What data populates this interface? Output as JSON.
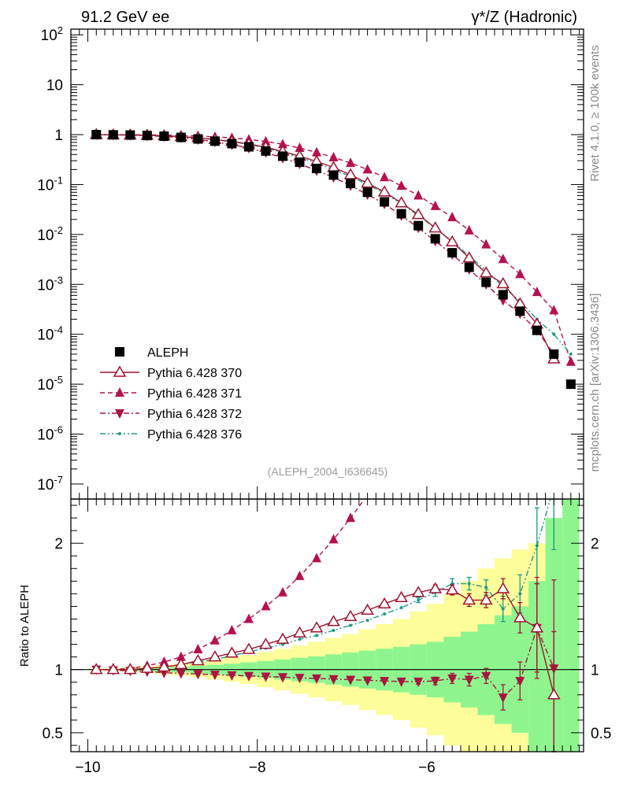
{
  "header": {
    "energy_label": "91.2 GeV ee",
    "process_label": "γ*/Z (Hadronic)"
  },
  "side_labels": {
    "rivet": "Rivet 4.1.0, ≥ 100k events",
    "mcplots": "mcplots.cern.ch [arXiv:1306.3436]"
  },
  "analysis_label": "(ALEPH_2004_I636645)",
  "colors": {
    "data": "#000000",
    "p370": "#a0122e",
    "p371": "#b5104f",
    "p372": "#a81640",
    "p376": "#1a9a86",
    "band_inner": "#8ef58e",
    "band_outer": "#fdfd99"
  },
  "chart_data": [
    {
      "type": "line",
      "role": "main",
      "yscale": "log",
      "xlim": [
        -10.2,
        -4.15
      ],
      "ylim": [
        5e-08,
        130
      ],
      "ytick_labels": [
        "10^2",
        "10",
        "1",
        "10^-1",
        "10^-2",
        "10^-3",
        "10^-4",
        "10^-5",
        "10^-6",
        "10^-7"
      ],
      "x": [
        -9.9,
        -9.7,
        -9.5,
        -9.3,
        -9.1,
        -8.9,
        -8.7,
        -8.5,
        -8.3,
        -8.1,
        -7.9,
        -7.7,
        -7.5,
        -7.3,
        -7.1,
        -6.9,
        -6.7,
        -6.5,
        -6.3,
        -6.1,
        -5.9,
        -5.7,
        -5.5,
        -5.3,
        -5.1,
        -4.9,
        -4.7,
        -4.5,
        -4.3
      ],
      "series": [
        {
          "name": "ALEPH",
          "marker": "square",
          "values": [
            1.0,
            0.99,
            0.98,
            0.96,
            0.93,
            0.88,
            0.82,
            0.74,
            0.66,
            0.57,
            0.47,
            0.37,
            0.28,
            0.21,
            0.155,
            0.105,
            0.07,
            0.045,
            0.026,
            0.015,
            0.0082,
            0.0043,
            0.0022,
            0.0011,
            0.00062,
            0.00029,
            0.00012,
            4e-05,
            1e-05
          ]
        },
        {
          "name": "Pythia 6.428 370",
          "marker": "triangle-open",
          "dash": "solid",
          "values": [
            1.0,
            0.99,
            0.985,
            0.97,
            0.95,
            0.91,
            0.87,
            0.8,
            0.73,
            0.65,
            0.56,
            0.46,
            0.37,
            0.29,
            0.22,
            0.157,
            0.107,
            0.071,
            0.043,
            0.025,
            0.0135,
            0.0071,
            0.0034,
            0.0017,
            0.00103,
            0.00041,
            0.00016,
            3.2e-05,
            null
          ]
        },
        {
          "name": "Pythia 6.428 371",
          "marker": "triangle-filled",
          "dash": "dashed",
          "values": [
            1.0,
            0.995,
            0.99,
            0.99,
            0.98,
            0.96,
            0.94,
            0.9,
            0.86,
            0.8,
            0.73,
            0.64,
            0.54,
            0.44,
            0.35,
            0.27,
            0.2,
            0.14,
            0.094,
            0.06,
            0.037,
            0.022,
            0.012,
            0.0063,
            0.0032,
            0.0016,
            0.0007,
            0.0003,
            2.8e-05
          ]
        },
        {
          "name": "Pythia 6.428 372",
          "marker": "triangle-down",
          "dash": "dashdot",
          "values": [
            1.0,
            0.99,
            0.98,
            0.95,
            0.92,
            0.87,
            0.8,
            0.72,
            0.63,
            0.54,
            0.44,
            0.34,
            0.26,
            0.19,
            0.14,
            0.095,
            0.063,
            0.041,
            0.024,
            0.0136,
            0.0074,
            0.004,
            0.002,
            0.001,
            0.00048,
            0.00026,
            0.00012,
            4e-05,
            null
          ]
        },
        {
          "name": "Pythia 6.428 376",
          "marker": "dot",
          "dash": "dashdotdot",
          "values": [
            1.0,
            0.99,
            0.985,
            0.97,
            0.95,
            0.91,
            0.86,
            0.79,
            0.72,
            0.64,
            0.54,
            0.44,
            0.35,
            0.27,
            0.2,
            0.145,
            0.1,
            0.067,
            0.041,
            0.024,
            0.0134,
            0.0073,
            0.0037,
            0.0019,
            0.0009,
            0.00046,
            0.0002,
            0.0001,
            4e-05
          ]
        }
      ],
      "legend": [
        "ALEPH",
        "Pythia 6.428 370",
        "Pythia 6.428 371",
        "Pythia 6.428 372",
        "Pythia 6.428 376"
      ],
      "legend_position": "bottom-left"
    },
    {
      "type": "line",
      "role": "ratio",
      "ylabel": "Ratio to ALEPH",
      "xlim": [
        -10.2,
        -4.15
      ],
      "ylim": [
        0.35,
        2.35
      ],
      "yticks": [
        0.5,
        1,
        2
      ],
      "ytick_labels": [
        "0.5",
        "1",
        "2"
      ],
      "xticks": [
        -10,
        -8,
        -6
      ],
      "xtick_labels": [
        "−10",
        "−8",
        "−6"
      ],
      "x": [
        -9.9,
        -9.7,
        -9.5,
        -9.3,
        -9.1,
        -8.9,
        -8.7,
        -8.5,
        -8.3,
        -8.1,
        -7.9,
        -7.7,
        -7.5,
        -7.3,
        -7.1,
        -6.9,
        -6.7,
        -6.5,
        -6.3,
        -6.1,
        -5.9,
        -5.7,
        -5.5,
        -5.3,
        -5.1,
        -4.9,
        -4.7,
        -4.5,
        -4.3
      ],
      "bands": {
        "inner": [
          0.004,
          0.006,
          0.009,
          0.013,
          0.018,
          0.023,
          0.03,
          0.038,
          0.047,
          0.057,
          0.068,
          0.08,
          0.093,
          0.105,
          0.12,
          0.135,
          0.15,
          0.165,
          0.18,
          0.2,
          0.22,
          0.26,
          0.3,
          0.36,
          0.43,
          0.5,
          0.7,
          1.2,
          1.6
        ],
        "outer": [
          0.008,
          0.012,
          0.018,
          0.026,
          0.036,
          0.048,
          0.062,
          0.078,
          0.095,
          0.115,
          0.14,
          0.165,
          0.19,
          0.22,
          0.25,
          0.28,
          0.32,
          0.36,
          0.4,
          0.46,
          0.52,
          0.6,
          0.7,
          0.8,
          0.88,
          0.95,
          1.0,
          1.0,
          1.0
        ]
      },
      "series": [
        {
          "name": "Pythia 6.428 370",
          "values": [
            1.0,
            1.0,
            1.0,
            1.01,
            1.02,
            1.04,
            1.07,
            1.1,
            1.13,
            1.16,
            1.2,
            1.24,
            1.29,
            1.33,
            1.38,
            1.42,
            1.47,
            1.52,
            1.57,
            1.61,
            1.64,
            1.63,
            1.55,
            1.55,
            1.64,
            1.41,
            1.33,
            0.8,
            null
          ],
          "err": [
            0,
            0,
            0,
            0,
            0,
            0,
            0,
            0,
            0,
            0,
            0,
            0,
            0,
            0,
            0,
            0,
            0,
            0,
            0,
            0.02,
            0.03,
            0.04,
            0.05,
            0.06,
            0.08,
            0.12,
            0.35,
            0.5,
            0
          ]
        },
        {
          "name": "Pythia 6.428 371",
          "values": [
            1.0,
            1.0,
            1.01,
            1.03,
            1.06,
            1.1,
            1.16,
            1.23,
            1.31,
            1.4,
            1.5,
            1.61,
            1.74,
            1.88,
            2.03,
            2.2,
            2.38,
            null,
            null,
            null,
            null,
            null,
            null,
            null,
            null,
            null,
            null,
            null,
            null
          ],
          "err": [
            0,
            0,
            0,
            0,
            0,
            0,
            0,
            0,
            0,
            0,
            0,
            0,
            0,
            0,
            0,
            0,
            0,
            0,
            0,
            0,
            0,
            0,
            0,
            0,
            0,
            0,
            0,
            0,
            0
          ]
        },
        {
          "name": "Pythia 6.428 372",
          "values": [
            1.0,
            0.995,
            0.99,
            0.985,
            0.975,
            0.97,
            0.965,
            0.96,
            0.955,
            0.95,
            0.945,
            0.94,
            0.935,
            0.93,
            0.925,
            0.92,
            0.915,
            0.91,
            0.905,
            0.905,
            0.91,
            0.93,
            0.92,
            0.95,
            0.78,
            0.91,
            1.33,
            1.01,
            null
          ],
          "err": [
            0,
            0,
            0,
            0,
            0,
            0,
            0,
            0,
            0,
            0,
            0,
            0,
            0,
            0,
            0,
            0,
            0,
            0,
            0,
            0.02,
            0.03,
            0.04,
            0.05,
            0.06,
            0.1,
            0.15,
            0.4,
            0.7,
            0
          ]
        },
        {
          "name": "Pythia 6.428 376",
          "values": [
            1.0,
            1.0,
            1.0,
            1.01,
            1.02,
            1.04,
            1.06,
            1.08,
            1.11,
            1.14,
            1.17,
            1.2,
            1.24,
            1.27,
            1.31,
            1.35,
            1.39,
            1.44,
            1.49,
            1.55,
            1.61,
            1.68,
            1.68,
            1.65,
            1.48,
            1.6,
            1.98,
            2.45,
            null
          ],
          "err": [
            0,
            0,
            0,
            0,
            0,
            0,
            0,
            0,
            0,
            0,
            0,
            0,
            0,
            0,
            0,
            0,
            0,
            0,
            0,
            0.02,
            0.03,
            0.04,
            0.05,
            0.06,
            0.1,
            0.15,
            0.3,
            0.5,
            0
          ]
        }
      ]
    }
  ]
}
